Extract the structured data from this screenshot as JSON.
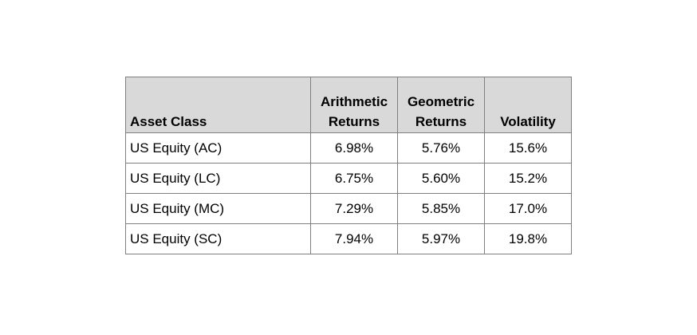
{
  "table": {
    "headers": {
      "asset_class": "Asset Class",
      "arithmetic_line1": "Arithmetic",
      "arithmetic_line2": "Returns",
      "geometric_line1": "Geometric",
      "geometric_line2": "Returns",
      "volatility": "Volatility"
    },
    "rows": [
      {
        "asset_class": "US Equity (AC)",
        "arithmetic": "6.98%",
        "geometric": "5.76%",
        "volatility": "15.6%"
      },
      {
        "asset_class": "US Equity (LC)",
        "arithmetic": "6.75%",
        "geometric": "5.60%",
        "volatility": "15.2%"
      },
      {
        "asset_class": "US Equity (MC)",
        "arithmetic": "7.29%",
        "geometric": "5.85%",
        "volatility": "17.0%"
      },
      {
        "asset_class": "US Equity (SC)",
        "arithmetic": "7.94%",
        "geometric": "5.97%",
        "volatility": "19.8%"
      }
    ],
    "colors": {
      "header_background": "#d9d9d9",
      "border": "#7f7f7f",
      "text": "#000000"
    }
  }
}
